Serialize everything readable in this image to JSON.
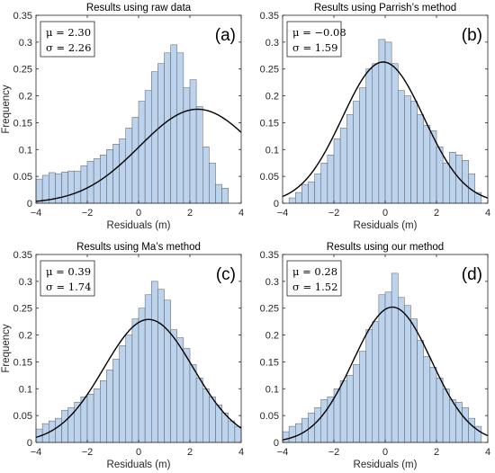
{
  "chart_data": [
    {
      "type": "histogram",
      "panel_label": "(a)",
      "title": "Results using raw data",
      "xlabel": "Residuals (m)",
      "ylabel": "Frequency",
      "xlim": [
        -4,
        4
      ],
      "ylim": [
        0,
        0.35
      ],
      "xticks": [
        "-4",
        "-2",
        "0",
        "2",
        "4"
      ],
      "yticks": [
        "0",
        "0.05",
        "0.1",
        "0.15",
        "0.2",
        "0.25",
        "0.3",
        "0.35"
      ],
      "stats": {
        "mu": "μ = 2.30",
        "sigma": "σ = 2.26"
      },
      "bin_edges": [
        -4.0,
        -3.75,
        -3.5,
        -3.25,
        -3.0,
        -2.75,
        -2.5,
        -2.25,
        -2.0,
        -1.75,
        -1.5,
        -1.25,
        -1.0,
        -0.75,
        -0.5,
        -0.25,
        0.0,
        0.25,
        0.5,
        0.75,
        1.0,
        1.25,
        1.5,
        1.75,
        2.0,
        2.25,
        2.5,
        2.75,
        3.0,
        3.25,
        3.5
      ],
      "values": [
        0.045,
        0.052,
        0.057,
        0.055,
        0.058,
        0.06,
        0.06,
        0.07,
        0.078,
        0.083,
        0.09,
        0.1,
        0.11,
        0.12,
        0.14,
        0.16,
        0.19,
        0.21,
        0.245,
        0.26,
        0.28,
        0.295,
        0.28,
        0.215,
        0.23,
        0.18,
        0.105,
        0.075,
        0.035,
        0.028
      ],
      "fit": {
        "mu": 2.3,
        "peak": 0.175
      },
      "bar_color": "#bcd3ee",
      "bar_edge": "#5a5a5a",
      "fit_color": "#000000"
    },
    {
      "type": "histogram",
      "panel_label": "(b)",
      "title": "Results using Parrish’s method",
      "xlabel": "Residuals (m)",
      "ylabel": "",
      "xlim": [
        -4,
        4
      ],
      "ylim": [
        0,
        0.35
      ],
      "xticks": [
        "-4",
        "-2",
        "0",
        "2",
        "4"
      ],
      "yticks": [
        "0",
        "0.05",
        "0.1",
        "0.15",
        "0.2",
        "0.25",
        "0.3",
        "0.35"
      ],
      "stats": {
        "mu": "μ = −0.08",
        "sigma": "σ = 1.59"
      },
      "bin_edges": [
        -3.75,
        -3.5,
        -3.25,
        -3.0,
        -2.75,
        -2.5,
        -2.25,
        -2.0,
        -1.75,
        -1.5,
        -1.25,
        -1.0,
        -0.75,
        -0.5,
        -0.25,
        0.0,
        0.25,
        0.5,
        0.75,
        1.0,
        1.25,
        1.5,
        1.75,
        2.0,
        2.25,
        2.5,
        2.75,
        3.0,
        3.25,
        3.5,
        3.75
      ],
      "values": [
        0.01,
        0.02,
        0.035,
        0.04,
        0.055,
        0.075,
        0.09,
        0.12,
        0.14,
        0.165,
        0.19,
        0.215,
        0.25,
        0.26,
        0.305,
        0.3,
        0.26,
        0.21,
        0.2,
        0.19,
        0.165,
        0.145,
        0.135,
        0.105,
        0.075,
        0.095,
        0.09,
        0.08,
        0.055,
        0.02
      ],
      "fit": {
        "mu": -0.08,
        "peak": 0.263
      },
      "bar_color": "#bcd3ee",
      "bar_edge": "#5a5a5a",
      "fit_color": "#000000"
    },
    {
      "type": "histogram",
      "panel_label": "(c)",
      "title": "Results using Ma’s method",
      "xlabel": "Residuals (m)",
      "ylabel": "Frequency",
      "xlim": [
        -4,
        4
      ],
      "ylim": [
        0,
        0.35
      ],
      "xticks": [
        "-4",
        "-2",
        "0",
        "2",
        "4"
      ],
      "yticks": [
        "0",
        "0.05",
        "0.1",
        "0.15",
        "0.2",
        "0.25",
        "0.3",
        "0.35"
      ],
      "stats": {
        "mu": "μ = 0.39",
        "sigma": "σ = 1.74"
      },
      "bin_edges": [
        -4.0,
        -3.75,
        -3.5,
        -3.25,
        -3.0,
        -2.75,
        -2.5,
        -2.25,
        -2.0,
        -1.75,
        -1.5,
        -1.25,
        -1.0,
        -0.75,
        -0.5,
        -0.25,
        0.0,
        0.25,
        0.5,
        0.75,
        1.0,
        1.25,
        1.5,
        1.75,
        2.0,
        2.25,
        2.5,
        2.75,
        3.0,
        3.25,
        3.5,
        3.75,
        4.0
      ],
      "values": [
        0.025,
        0.035,
        0.04,
        0.045,
        0.06,
        0.065,
        0.075,
        0.085,
        0.09,
        0.1,
        0.115,
        0.135,
        0.155,
        0.18,
        0.2,
        0.23,
        0.25,
        0.275,
        0.3,
        0.285,
        0.265,
        0.21,
        0.195,
        0.175,
        0.145,
        0.12,
        0.1,
        0.085,
        0.07,
        0.055,
        0.04,
        0.03
      ],
      "fit": {
        "mu": 0.39,
        "peak": 0.229
      },
      "bar_color": "#bcd3ee",
      "bar_edge": "#5a5a5a",
      "fit_color": "#000000"
    },
    {
      "type": "histogram",
      "panel_label": "(d)",
      "title": "Results using our method",
      "xlabel": "Residuals (m)",
      "ylabel": "",
      "xlim": [
        -4,
        4
      ],
      "ylim": [
        0,
        0.35
      ],
      "xticks": [
        "-4",
        "-2",
        "0",
        "2",
        "4"
      ],
      "yticks": [
        "0",
        "0.05",
        "0.1",
        "0.15",
        "0.2",
        "0.25",
        "0.3",
        "0.35"
      ],
      "stats": {
        "mu": "μ = 0.28",
        "sigma": "σ = 1.52"
      },
      "bin_edges": [
        -4.0,
        -3.75,
        -3.5,
        -3.25,
        -3.0,
        -2.75,
        -2.5,
        -2.25,
        -2.0,
        -1.75,
        -1.5,
        -1.25,
        -1.0,
        -0.75,
        -0.5,
        -0.25,
        0.0,
        0.25,
        0.5,
        0.75,
        1.0,
        1.25,
        1.5,
        1.75,
        2.0,
        2.25,
        2.5,
        2.75,
        3.0,
        3.25,
        3.5,
        3.75
      ],
      "values": [
        0.02,
        0.03,
        0.035,
        0.045,
        0.055,
        0.065,
        0.08,
        0.085,
        0.1,
        0.115,
        0.125,
        0.145,
        0.17,
        0.21,
        0.225,
        0.275,
        0.28,
        0.315,
        0.27,
        0.255,
        0.23,
        0.19,
        0.16,
        0.14,
        0.12,
        0.1,
        0.08,
        0.075,
        0.065,
        0.045,
        0.03
      ],
      "fit": {
        "mu": 0.28,
        "peak": 0.252
      },
      "bar_color": "#bcd3ee",
      "bar_edge": "#5a5a5a",
      "fit_color": "#000000"
    }
  ]
}
